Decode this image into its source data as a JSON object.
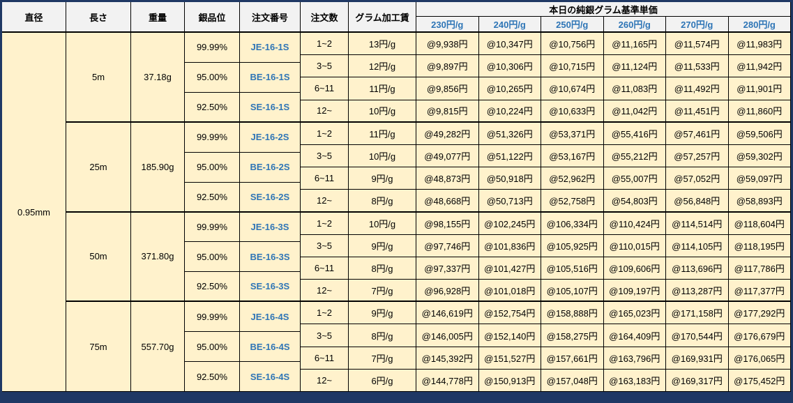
{
  "page": {
    "outer_bg": "#1F3864",
    "cell_bg": "#FFF2CC",
    "header_bg": "#F2F2F2",
    "grid_color": "#000000",
    "blue_text": "#2E75B6"
  },
  "chart_data": {
    "type": "table",
    "title": "本日の純銀グラム基準単価",
    "columns": [
      "直径",
      "長さ",
      "重量",
      "銀品位",
      "注文番号",
      "注文数",
      "グラム加工賃"
    ],
    "price_columns": [
      "230円/g",
      "240円/g",
      "250円/g",
      "260円/g",
      "270円/g",
      "280円/g"
    ],
    "diameter": "0.95mm",
    "groups": [
      {
        "length": "5m",
        "weight": "37.18g",
        "purities": [
          {
            "purity": "99.99%",
            "order_no": "JE-16-1S"
          },
          {
            "purity": "95.00%",
            "order_no": "BE-16-1S"
          },
          {
            "purity": "92.50%",
            "order_no": "SE-16-1S"
          }
        ],
        "rows": [
          {
            "qty": "1~2",
            "fee": "13円/g",
            "prices": [
              "@9,938円",
              "@10,347円",
              "@10,756円",
              "@11,165円",
              "@11,574円",
              "@11,983円"
            ]
          },
          {
            "qty": "3~5",
            "fee": "12円/g",
            "prices": [
              "@9,897円",
              "@10,306円",
              "@10,715円",
              "@11,124円",
              "@11,533円",
              "@11,942円"
            ]
          },
          {
            "qty": "6~11",
            "fee": "11円/g",
            "prices": [
              "@9,856円",
              "@10,265円",
              "@10,674円",
              "@11,083円",
              "@11,492円",
              "@11,901円"
            ]
          },
          {
            "qty": "12~",
            "fee": "10円/g",
            "prices": [
              "@9,815円",
              "@10,224円",
              "@10,633円",
              "@11,042円",
              "@11,451円",
              "@11,860円"
            ]
          }
        ]
      },
      {
        "length": "25m",
        "weight": "185.90g",
        "purities": [
          {
            "purity": "99.99%",
            "order_no": "JE-16-2S"
          },
          {
            "purity": "95.00%",
            "order_no": "BE-16-2S"
          },
          {
            "purity": "92.50%",
            "order_no": "SE-16-2S"
          }
        ],
        "rows": [
          {
            "qty": "1~2",
            "fee": "11円/g",
            "prices": [
              "@49,282円",
              "@51,326円",
              "@53,371円",
              "@55,416円",
              "@57,461円",
              "@59,506円"
            ]
          },
          {
            "qty": "3~5",
            "fee": "10円/g",
            "prices": [
              "@49,077円",
              "@51,122円",
              "@53,167円",
              "@55,212円",
              "@57,257円",
              "@59,302円"
            ]
          },
          {
            "qty": "6~11",
            "fee": "9円/g",
            "prices": [
              "@48,873円",
              "@50,918円",
              "@52,962円",
              "@55,007円",
              "@57,052円",
              "@59,097円"
            ]
          },
          {
            "qty": "12~",
            "fee": "8円/g",
            "prices": [
              "@48,668円",
              "@50,713円",
              "@52,758円",
              "@54,803円",
              "@56,848円",
              "@58,893円"
            ]
          }
        ]
      },
      {
        "length": "50m",
        "weight": "371.80g",
        "purities": [
          {
            "purity": "99.99%",
            "order_no": "JE-16-3S"
          },
          {
            "purity": "95.00%",
            "order_no": "BE-16-3S"
          },
          {
            "purity": "92.50%",
            "order_no": "SE-16-3S"
          }
        ],
        "rows": [
          {
            "qty": "1~2",
            "fee": "10円/g",
            "prices": [
              "@98,155円",
              "@102,245円",
              "@106,334円",
              "@110,424円",
              "@114,514円",
              "@118,604円"
            ]
          },
          {
            "qty": "3~5",
            "fee": "9円/g",
            "prices": [
              "@97,746円",
              "@101,836円",
              "@105,925円",
              "@110,015円",
              "@114,105円",
              "@118,195円"
            ]
          },
          {
            "qty": "6~11",
            "fee": "8円/g",
            "prices": [
              "@97,337円",
              "@101,427円",
              "@105,516円",
              "@109,606円",
              "@113,696円",
              "@117,786円"
            ]
          },
          {
            "qty": "12~",
            "fee": "7円/g",
            "prices": [
              "@96,928円",
              "@101,018円",
              "@105,107円",
              "@109,197円",
              "@113,287円",
              "@117,377円"
            ]
          }
        ]
      },
      {
        "length": "75m",
        "weight": "557.70g",
        "purities": [
          {
            "purity": "99.99%",
            "order_no": "JE-16-4S"
          },
          {
            "purity": "95.00%",
            "order_no": "BE-16-4S"
          },
          {
            "purity": "92.50%",
            "order_no": "SE-16-4S"
          }
        ],
        "rows": [
          {
            "qty": "1~2",
            "fee": "9円/g",
            "prices": [
              "@146,619円",
              "@152,754円",
              "@158,888円",
              "@165,023円",
              "@171,158円",
              "@177,292円"
            ]
          },
          {
            "qty": "3~5",
            "fee": "8円/g",
            "prices": [
              "@146,005円",
              "@152,140円",
              "@158,275円",
              "@164,409円",
              "@170,544円",
              "@176,679円"
            ]
          },
          {
            "qty": "6~11",
            "fee": "7円/g",
            "prices": [
              "@145,392円",
              "@151,527円",
              "@157,661円",
              "@163,796円",
              "@169,931円",
              "@176,065円"
            ]
          },
          {
            "qty": "12~",
            "fee": "6円/g",
            "prices": [
              "@144,778円",
              "@150,913円",
              "@157,048円",
              "@163,183円",
              "@169,317円",
              "@175,452円"
            ]
          }
        ]
      }
    ]
  }
}
